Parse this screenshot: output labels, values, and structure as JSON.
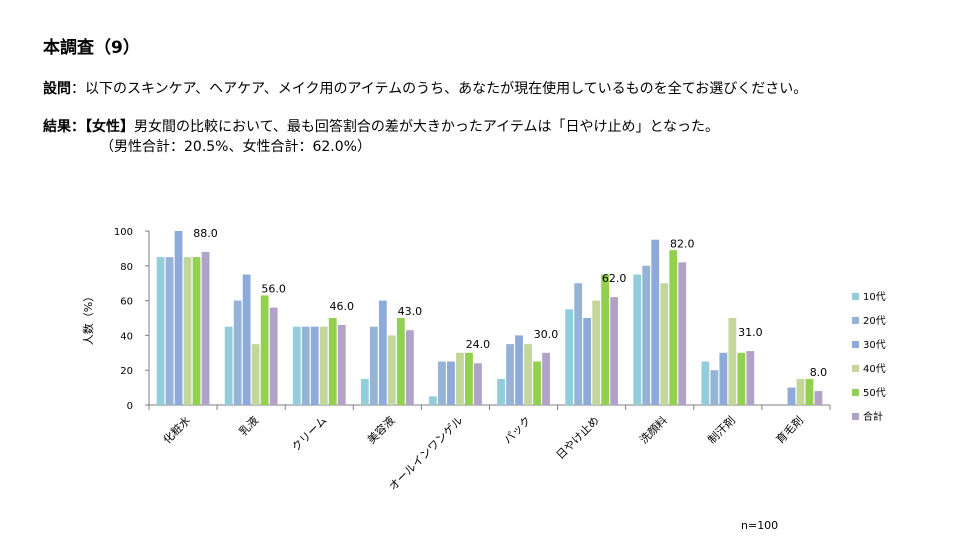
{
  "header": {
    "title": "本調査（9）",
    "question_label": "設問",
    "question_sep": "：",
    "question_text": "以下のスキンケア、ヘアケア、メイク用のアイテムのうち、あなたが現在使用しているものを全てお選びください。",
    "result_label": "結果：",
    "result_tag": "【女性】",
    "result_text": "男女間の比較において、最も回答割合の差が大きかったアイテムは「日やけ止め」となった。",
    "result_sub": "（男性合計：20.5%、女性合計：62.0%）"
  },
  "footer": {
    "n": "n=100"
  },
  "colors": {
    "s10": "#92cddc",
    "s20": "#95b3d7",
    "s30": "#8eaadb",
    "s40": "#c3d69b",
    "s50": "#92d050",
    "total": "#b3a2c7",
    "axis": "#7f7f7f"
  },
  "chart_data": {
    "type": "bar",
    "ylabel": "人数（%）",
    "ylim": [
      0,
      100
    ],
    "yticks": [
      "0",
      "20",
      "40",
      "60",
      "80",
      "100"
    ],
    "categories": [
      "化粧水",
      "乳液",
      "クリーム",
      "美容液",
      "オールインワンゲル",
      "パック",
      "日やけ止め",
      "洗顔料",
      "制汗剤",
      "育毛剤"
    ],
    "series": [
      {
        "name": "10代",
        "values": [
          85,
          45,
          45,
          15,
          5,
          15,
          55,
          75,
          25,
          0
        ]
      },
      {
        "name": "20代",
        "values": [
          85,
          60,
          45,
          45,
          25,
          35,
          70,
          80,
          20,
          0
        ]
      },
      {
        "name": "30代",
        "values": [
          100,
          75,
          45,
          60,
          25,
          40,
          50,
          95,
          30,
          10
        ]
      },
      {
        "name": "40代",
        "values": [
          85,
          35,
          45,
          40,
          30,
          35,
          60,
          70,
          50,
          15
        ]
      },
      {
        "name": "50代",
        "values": [
          85,
          63,
          50,
          50,
          30,
          25,
          75,
          89,
          30,
          15
        ]
      },
      {
        "name": "合計",
        "values": [
          88,
          56,
          46,
          43,
          24,
          30,
          62,
          82,
          31,
          8
        ]
      }
    ],
    "data_labels": [
      "88.0",
      "56.0",
      "46.0",
      "43.0",
      "24.0",
      "30.0",
      "62.0",
      "82.0",
      "31.0",
      "8.0"
    ],
    "legend_position": "right"
  }
}
